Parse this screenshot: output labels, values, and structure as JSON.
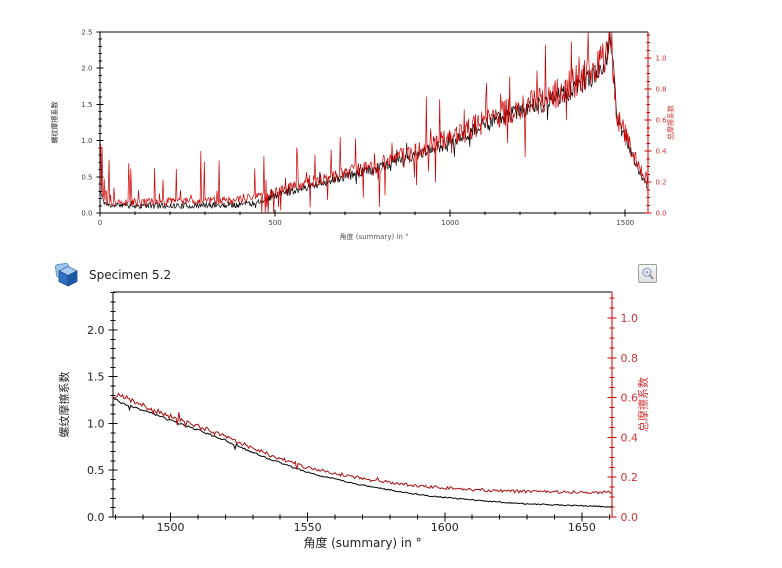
{
  "page": {
    "background": "#ffffff"
  },
  "specimen": {
    "title": "Specimen 5.2"
  },
  "icons": {
    "cube": "specimen-cube-icon",
    "magnifier": "zoom-magnifier-icon"
  },
  "colors": {
    "series_black": "#000000",
    "series_red_top": "#cc0000",
    "series_red_bottom": "#aa1111",
    "axis_red": "#cc0000",
    "axis_black": "#000000",
    "tick_label_dark": "#3a3f4a",
    "tick_label_red": "#cc3333"
  },
  "chart_data": [
    {
      "id": "summary",
      "type": "line",
      "title": "",
      "xlabel": "角度 (summary) in °",
      "xlabel_color": "#555555",
      "ylabel_left": "螺纹摩擦系数",
      "ylabel_right": "总摩擦系数",
      "legend": "none",
      "grid": false,
      "x_range": [
        0,
        1565
      ],
      "x_ticks": {
        "values": [
          0,
          500,
          1000,
          1500
        ],
        "labels": [
          "0",
          "500",
          "1000",
          "1500"
        ],
        "minor_step": 100,
        "label_color": "#3a3f4a"
      },
      "yleft": {
        "range": [
          0,
          2.5
        ],
        "values": [
          0,
          0.5,
          1.0,
          1.5,
          2.0,
          2.5
        ],
        "labels": [
          "0.0",
          "0.5",
          "1.0",
          "1.5",
          "2.0",
          "2.5"
        ],
        "minor_step": 0.1,
        "color": "#000000",
        "label_color": "#3a3f4a"
      },
      "yright": {
        "range": [
          0,
          1.168
        ],
        "values": [
          0,
          0.2,
          0.4,
          0.6,
          0.8,
          1.0
        ],
        "labels": [
          "0.0",
          "0.2",
          "0.4",
          "0.6",
          "0.8",
          "1.0"
        ],
        "minor_step": 0.05,
        "color": "#cc0000",
        "label_color": "#cc3333"
      },
      "series": [
        {
          "name": "螺纹摩擦系数",
          "axis": "left",
          "color": "#000000",
          "width": 0.7,
          "step": 2,
          "seed": 11,
          "noise_base": 0.035,
          "noise_scale": 0.055,
          "clip_min": 0,
          "clip_max": 2.5,
          "spike_zones": [
            {
              "from": 60,
              "to": 430,
              "prob": 0.05,
              "mag": 0.1,
              "dir": "up"
            },
            {
              "from": 430,
              "to": 1450,
              "prob": 0.07,
              "mag": 0.16,
              "dir": "both"
            }
          ],
          "envelope": [
            [
              0,
              0.32
            ],
            [
              8,
              0.18
            ],
            [
              20,
              0.11
            ],
            [
              120,
              0.1
            ],
            [
              260,
              0.1
            ],
            [
              380,
              0.11
            ],
            [
              440,
              0.14
            ],
            [
              500,
              0.24
            ],
            [
              560,
              0.32
            ],
            [
              620,
              0.4
            ],
            [
              700,
              0.5
            ],
            [
              780,
              0.61
            ],
            [
              860,
              0.73
            ],
            [
              940,
              0.86
            ],
            [
              1020,
              1.02
            ],
            [
              1100,
              1.22
            ],
            [
              1160,
              1.34
            ],
            [
              1220,
              1.44
            ],
            [
              1280,
              1.54
            ],
            [
              1340,
              1.68
            ],
            [
              1400,
              1.86
            ],
            [
              1435,
              2.02
            ],
            [
              1449,
              2.2
            ],
            [
              1456,
              2.42
            ],
            [
              1462,
              2.28
            ],
            [
              1468,
              1.85
            ],
            [
              1474,
              1.5
            ],
            [
              1479,
              1.28
            ],
            [
              1490,
              1.15
            ],
            [
              1500,
              1.03
            ],
            [
              1510,
              0.93
            ],
            [
              1520,
              0.82
            ],
            [
              1530,
              0.69
            ],
            [
              1540,
              0.58
            ],
            [
              1550,
              0.47
            ],
            [
              1558,
              0.41
            ],
            [
              1565,
              0.37
            ]
          ]
        },
        {
          "name": "总摩擦系数",
          "axis": "right",
          "color": "#cc0000",
          "width": 0.7,
          "step": 2,
          "seed": 77,
          "noise_base": 0.018,
          "noise_scale": 0.11,
          "clip_min": 0,
          "clip_max": 1.168,
          "spike_zones": [
            {
              "from": 0,
              "to": 40,
              "prob": 0.45,
              "mag": 0.38,
              "dir": "up"
            },
            {
              "from": 40,
              "to": 460,
              "prob": 0.12,
              "mag": 0.33,
              "dir": "up"
            },
            {
              "from": 460,
              "to": 1445,
              "prob": 0.1,
              "mag": 0.3,
              "dir": "both"
            }
          ],
          "envelope": [
            [
              0,
              0.15
            ],
            [
              8,
              0.09
            ],
            [
              20,
              0.07
            ],
            [
              120,
              0.07
            ],
            [
              260,
              0.075
            ],
            [
              380,
              0.08
            ],
            [
              440,
              0.1
            ],
            [
              500,
              0.13
            ],
            [
              560,
              0.17
            ],
            [
              620,
              0.21
            ],
            [
              700,
              0.25
            ],
            [
              780,
              0.3
            ],
            [
              860,
              0.36
            ],
            [
              940,
              0.43
            ],
            [
              1020,
              0.5
            ],
            [
              1100,
              0.6
            ],
            [
              1160,
              0.65
            ],
            [
              1220,
              0.7
            ],
            [
              1280,
              0.75
            ],
            [
              1340,
              0.82
            ],
            [
              1400,
              0.9
            ],
            [
              1435,
              0.97
            ],
            [
              1449,
              1.04
            ],
            [
              1456,
              1.12
            ],
            [
              1462,
              1.06
            ],
            [
              1468,
              0.88
            ],
            [
              1474,
              0.7
            ],
            [
              1479,
              0.6
            ],
            [
              1490,
              0.56
            ],
            [
              1500,
              0.5
            ],
            [
              1510,
              0.45
            ],
            [
              1520,
              0.4
            ],
            [
              1530,
              0.34
            ],
            [
              1540,
              0.29
            ],
            [
              1550,
              0.245
            ],
            [
              1558,
              0.23
            ],
            [
              1565,
              0.22
            ]
          ]
        }
      ]
    },
    {
      "id": "specimen",
      "type": "line",
      "title": "Specimen 5.2",
      "xlabel": "角度 (summary) in °",
      "xlabel_color": "#222222",
      "ylabel_left": "螺纹摩擦系数",
      "ylabel_right": "总摩擦系数",
      "legend": "none",
      "grid": false,
      "x_range": [
        1479,
        1661
      ],
      "x_ticks": {
        "values": [
          1500,
          1550,
          1600,
          1650
        ],
        "labels": [
          "1500",
          "1550",
          "1600",
          "1650"
        ],
        "minor_step": 10,
        "label_color": "#222222"
      },
      "yleft": {
        "range": [
          0,
          2.406
        ],
        "values": [
          0,
          0.5,
          1.0,
          1.5,
          2.0
        ],
        "labels": [
          "0.0",
          "0.5",
          "1.0",
          "1.5",
          "2.0"
        ],
        "minor_step": 0.1,
        "color": "#000000",
        "label_color": "#222222"
      },
      "yright": {
        "range": [
          0,
          1.131
        ],
        "values": [
          0,
          0.2,
          0.4,
          0.6,
          0.8,
          1.0
        ],
        "labels": [
          "0.0",
          "0.2",
          "0.4",
          "0.6",
          "0.8",
          "1.0"
        ],
        "minor_step": 0.05,
        "color": "#cc0000",
        "label_color": "#cc3333"
      },
      "series": [
        {
          "name": "螺纹摩擦系数",
          "axis": "left",
          "color": "#000000",
          "width": 1,
          "step": 0.5,
          "seed": 3,
          "noise_base": 0.006,
          "noise_scale": 0.004,
          "clip_min": 0,
          "clip_max": 2.406,
          "spike_zones": [
            {
              "from": 1480,
              "to": 1545,
              "prob": 0.04,
              "mag": 0.05,
              "dir": "both"
            }
          ],
          "envelope": [
            [
              1479,
              1.28
            ],
            [
              1482,
              1.22
            ],
            [
              1486,
              1.18
            ],
            [
              1490,
              1.14
            ],
            [
              1495,
              1.09
            ],
            [
              1500,
              1.03
            ],
            [
              1505,
              0.98
            ],
            [
              1510,
              0.93
            ],
            [
              1515,
              0.875
            ],
            [
              1520,
              0.82
            ],
            [
              1525,
              0.75
            ],
            [
              1530,
              0.69
            ],
            [
              1535,
              0.63
            ],
            [
              1540,
              0.58
            ],
            [
              1545,
              0.525
            ],
            [
              1550,
              0.48
            ],
            [
              1555,
              0.44
            ],
            [
              1560,
              0.405
            ],
            [
              1565,
              0.37
            ],
            [
              1570,
              0.34
            ],
            [
              1575,
              0.315
            ],
            [
              1580,
              0.29
            ],
            [
              1585,
              0.265
            ],
            [
              1590,
              0.245
            ],
            [
              1595,
              0.225
            ],
            [
              1600,
              0.21
            ],
            [
              1605,
              0.195
            ],
            [
              1610,
              0.185
            ],
            [
              1615,
              0.17
            ],
            [
              1620,
              0.16
            ],
            [
              1625,
              0.15
            ],
            [
              1630,
              0.14
            ],
            [
              1635,
              0.135
            ],
            [
              1640,
              0.13
            ],
            [
              1645,
              0.125
            ],
            [
              1650,
              0.12
            ],
            [
              1655,
              0.115
            ],
            [
              1661,
              0.11
            ]
          ]
        },
        {
          "name": "总摩擦系数",
          "axis": "right",
          "color": "#aa1111",
          "width": 1,
          "step": 0.5,
          "seed": 21,
          "noise_base": 0.006,
          "noise_scale": 0.015,
          "clip_min": 0,
          "clip_max": 1.131,
          "spike_zones": [
            {
              "from": 1480,
              "to": 1560,
              "prob": 0.05,
              "mag": 0.045,
              "dir": "both"
            },
            {
              "from": 1560,
              "to": 1615,
              "prob": 0.04,
              "mag": 0.02,
              "dir": "both"
            }
          ],
          "envelope": [
            [
              1479,
              0.6
            ],
            [
              1482,
              0.615
            ],
            [
              1486,
              0.585
            ],
            [
              1490,
              0.56
            ],
            [
              1495,
              0.53
            ],
            [
              1500,
              0.505
            ],
            [
              1505,
              0.48
            ],
            [
              1510,
              0.455
            ],
            [
              1515,
              0.43
            ],
            [
              1520,
              0.405
            ],
            [
              1525,
              0.375
            ],
            [
              1530,
              0.345
            ],
            [
              1535,
              0.32
            ],
            [
              1540,
              0.295
            ],
            [
              1545,
              0.27
            ],
            [
              1550,
              0.25
            ],
            [
              1555,
              0.235
            ],
            [
              1560,
              0.22
            ],
            [
              1565,
              0.205
            ],
            [
              1570,
              0.193
            ],
            [
              1575,
              0.183
            ],
            [
              1580,
              0.173
            ],
            [
              1585,
              0.164
            ],
            [
              1590,
              0.157
            ],
            [
              1595,
              0.151
            ],
            [
              1600,
              0.146
            ],
            [
              1605,
              0.142
            ],
            [
              1610,
              0.138
            ],
            [
              1615,
              0.135
            ],
            [
              1620,
              0.132
            ],
            [
              1625,
              0.13
            ],
            [
              1630,
              0.128
            ],
            [
              1635,
              0.127
            ],
            [
              1640,
              0.126
            ],
            [
              1645,
              0.126
            ],
            [
              1650,
              0.125
            ],
            [
              1655,
              0.125
            ],
            [
              1661,
              0.125
            ]
          ]
        }
      ]
    }
  ]
}
